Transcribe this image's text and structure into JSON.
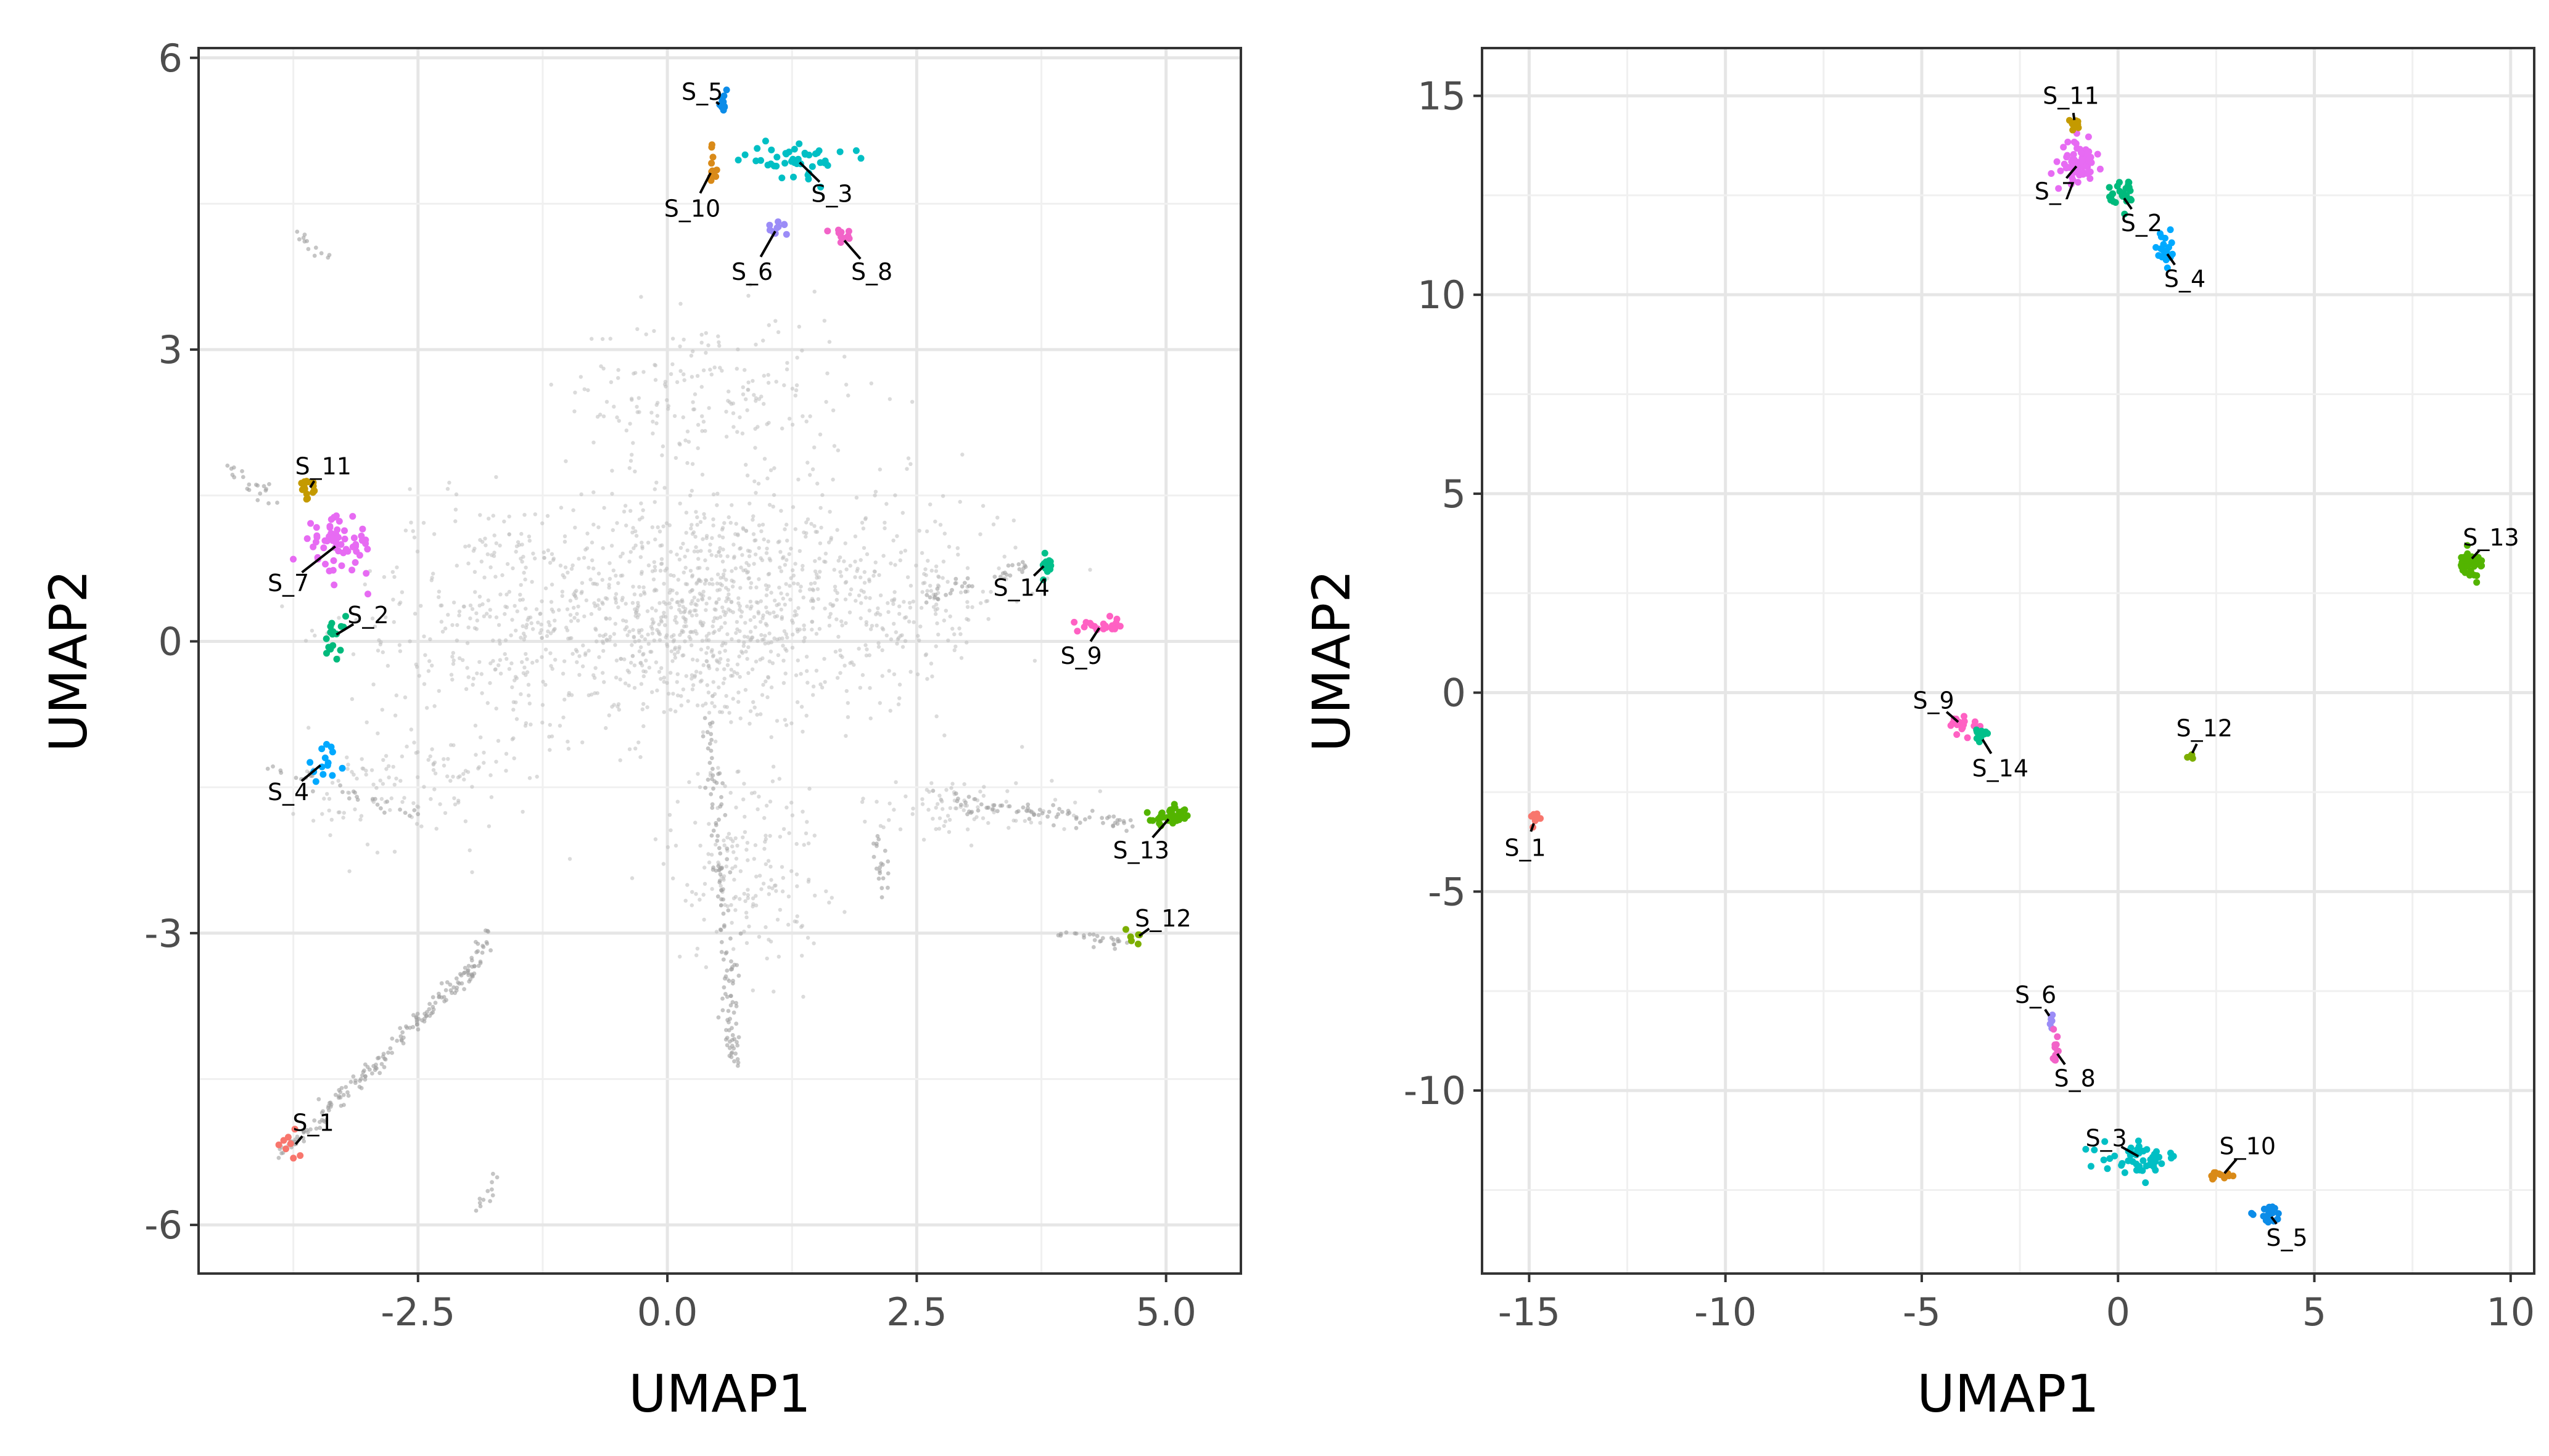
{
  "chart_data": [
    {
      "type": "scatter",
      "xlabel": "UMAP1",
      "ylabel": "UMAP2",
      "xlim": [
        -4.7,
        5.75
      ],
      "ylim": [
        -6.5,
        6.1
      ],
      "xticks": [
        -2.5,
        0.0,
        2.5,
        5.0
      ],
      "xtick_labels": [
        "-2.5",
        "0.0",
        "2.5",
        "5.0"
      ],
      "yticks": [
        -6,
        -3,
        0,
        3,
        6
      ],
      "ytick_labels": [
        "-6",
        "-3",
        "0",
        "3",
        "6"
      ],
      "grid": true,
      "background_color": "#bdbdbd",
      "background_clusters": [
        {
          "cx": 0.3,
          "cy": 0.3,
          "sx": 1.5,
          "sy": 1.1,
          "n": 950
        },
        {
          "cx": -1.8,
          "cy": 0.2,
          "sx": 1.2,
          "sy": 1.2,
          "n": 280
        },
        {
          "cx": 2.3,
          "cy": 0.5,
          "sx": 1.1,
          "sy": 1.0,
          "n": 250
        },
        {
          "cx": 0.4,
          "cy": 2.5,
          "sx": 1.3,
          "sy": 0.8,
          "n": 200
        },
        {
          "cx": 0.8,
          "cy": -2.3,
          "sx": 0.7,
          "sy": 1.0,
          "n": 180
        },
        {
          "cx": -2.6,
          "cy": -1.5,
          "sx": 0.9,
          "sy": 0.6,
          "n": 120
        },
        {
          "cx": 3.0,
          "cy": -1.7,
          "sx": 1.0,
          "sy": 0.25,
          "n": 90
        }
      ],
      "background_lines": [
        {
          "x1": -3.9,
          "y1": -5.3,
          "x2": -2.0,
          "y2": -3.4,
          "n": 160
        },
        {
          "x1": -2.0,
          "y1": -3.5,
          "x2": -1.8,
          "y2": -3.0,
          "n": 30
        },
        {
          "x1": 0.4,
          "y1": -0.8,
          "x2": 0.7,
          "y2": -4.4,
          "n": 110
        },
        {
          "x1": 2.6,
          "y1": -1.6,
          "x2": 4.7,
          "y2": -1.9,
          "n": 70
        },
        {
          "x1": 3.8,
          "y1": -3.0,
          "x2": 4.6,
          "y2": -3.1,
          "n": 25
        },
        {
          "x1": 2.5,
          "y1": 0.4,
          "x2": 3.6,
          "y2": 0.8,
          "n": 35
        },
        {
          "x1": -4.4,
          "y1": 1.8,
          "x2": -3.9,
          "y2": 1.4,
          "n": 20
        },
        {
          "x1": -3.7,
          "y1": 4.2,
          "x2": -3.4,
          "y2": 3.9,
          "n": 12
        },
        {
          "x1": -1.9,
          "y1": -5.9,
          "x2": -1.7,
          "y2": -5.5,
          "n": 12
        },
        {
          "x1": -4.0,
          "y1": -1.3,
          "x2": -2.5,
          "y2": -1.8,
          "n": 30
        },
        {
          "x1": 2.1,
          "y1": -2.0,
          "x2": 2.2,
          "y2": -2.7,
          "n": 20
        },
        {
          "x1": 0.55,
          "y1": -3.8,
          "x2": 0.7,
          "y2": -4.4,
          "n": 20
        }
      ],
      "samples": [
        {
          "name": "S_1",
          "color": "#F8766D",
          "x": -3.75,
          "y": -5.2,
          "spread": [
            0.15,
            0.12
          ],
          "n": 8,
          "label_x": -3.55,
          "label_y": -4.95
        },
        {
          "name": "S_2",
          "color": "#00BA7C",
          "x": -3.35,
          "y": 0.05,
          "spread": [
            0.1,
            0.18
          ],
          "n": 16,
          "label_x": -3.0,
          "label_y": 0.27
        },
        {
          "name": "S_3",
          "color": "#00BFC4",
          "x": 1.3,
          "y": 4.95,
          "spread": [
            0.45,
            0.15
          ],
          "n": 45,
          "label_x": 1.65,
          "label_y": 4.6
        },
        {
          "name": "S_4",
          "color": "#00A9FF",
          "x": -3.45,
          "y": -1.25,
          "spread": [
            0.15,
            0.12
          ],
          "n": 14,
          "label_x": -3.8,
          "label_y": -1.55
        },
        {
          "name": "S_5",
          "color": "#0C8CE8",
          "x": 0.55,
          "y": 5.5,
          "spread": [
            0.04,
            0.1
          ],
          "n": 12,
          "label_x": 0.35,
          "label_y": 5.65
        },
        {
          "name": "S_6",
          "color": "#9B8CF7",
          "x": 1.1,
          "y": 4.25,
          "spread": [
            0.1,
            0.07
          ],
          "n": 10,
          "label_x": 0.85,
          "label_y": 3.8
        },
        {
          "name": "S_7",
          "color": "#E76BF3",
          "x": -3.3,
          "y": 1.0,
          "spread": [
            0.3,
            0.25
          ],
          "n": 60,
          "label_x": -3.8,
          "label_y": 0.6
        },
        {
          "name": "S_8",
          "color": "#F263C8",
          "x": 1.75,
          "y": 4.15,
          "spread": [
            0.08,
            0.07
          ],
          "n": 12,
          "label_x": 2.05,
          "label_y": 3.8
        },
        {
          "name": "S_9",
          "color": "#FF61C3",
          "x": 4.35,
          "y": 0.17,
          "spread": [
            0.2,
            0.06
          ],
          "n": 20,
          "label_x": 4.15,
          "label_y": -0.15
        },
        {
          "name": "S_10",
          "color": "#D98A18",
          "x": 0.45,
          "y": 4.85,
          "spread": [
            0.05,
            0.2
          ],
          "n": 12,
          "label_x": 0.25,
          "label_y": 4.45
        },
        {
          "name": "S_11",
          "color": "#C49A00",
          "x": -3.6,
          "y": 1.55,
          "spread": [
            0.08,
            0.08
          ],
          "n": 16,
          "label_x": -3.45,
          "label_y": 1.8
        },
        {
          "name": "S_12",
          "color": "#7CAE00",
          "x": 4.7,
          "y": -3.05,
          "spread": [
            0.1,
            0.08
          ],
          "n": 6,
          "label_x": 4.97,
          "label_y": -2.85
        },
        {
          "name": "S_13",
          "color": "#53B400",
          "x": 5.05,
          "y": -1.8,
          "spread": [
            0.15,
            0.07
          ],
          "n": 40,
          "label_x": 4.75,
          "label_y": -2.15
        },
        {
          "name": "S_14",
          "color": "#00C08B",
          "x": 3.8,
          "y": 0.8,
          "spread": [
            0.05,
            0.13
          ],
          "n": 12,
          "label_x": 3.55,
          "label_y": 0.55
        }
      ]
    },
    {
      "type": "scatter",
      "xlabel": "UMAP1",
      "ylabel": "UMAP2",
      "xlim": [
        -16.2,
        10.6
      ],
      "ylim": [
        -14.6,
        16.2
      ],
      "xticks": [
        -15,
        -10,
        -5,
        0,
        5,
        10
      ],
      "xtick_labels": [
        "-15",
        "-10",
        "-5",
        "0",
        "5",
        "10"
      ],
      "yticks": [
        -10,
        -5,
        0,
        5,
        10,
        15
      ],
      "ytick_labels": [
        "-10",
        "-5",
        "0",
        "5",
        "10",
        "15"
      ],
      "grid": true,
      "samples": [
        {
          "name": "S_1",
          "color": "#F8766D",
          "x": -14.85,
          "y": -3.2,
          "spread": [
            0.15,
            0.3
          ],
          "n": 8,
          "label_x": -15.1,
          "label_y": -3.9
        },
        {
          "name": "S_2",
          "color": "#00BA7C",
          "x": 0.1,
          "y": 12.5,
          "spread": [
            0.3,
            0.3
          ],
          "n": 25,
          "label_x": 0.6,
          "label_y": 11.8
        },
        {
          "name": "S_3",
          "color": "#00BFC4",
          "x": 0.6,
          "y": -11.7,
          "spread": [
            0.8,
            0.3
          ],
          "n": 50,
          "label_x": -0.3,
          "label_y": -11.2
        },
        {
          "name": "S_4",
          "color": "#00A9FF",
          "x": 1.2,
          "y": 11.1,
          "spread": [
            0.25,
            0.35
          ],
          "n": 20,
          "label_x": 1.7,
          "label_y": 10.4
        },
        {
          "name": "S_5",
          "color": "#0C8CE8",
          "x": 3.85,
          "y": -13.1,
          "spread": [
            0.3,
            0.2
          ],
          "n": 20,
          "label_x": 4.3,
          "label_y": -13.7
        },
        {
          "name": "S_6",
          "color": "#9B8CF7",
          "x": -1.7,
          "y": -8.2,
          "spread": [
            0.05,
            0.15
          ],
          "n": 6,
          "label_x": -2.1,
          "label_y": -7.6
        },
        {
          "name": "S_7",
          "color": "#E76BF3",
          "x": -1.0,
          "y": 13.3,
          "spread": [
            0.35,
            0.45
          ],
          "n": 70,
          "label_x": -1.6,
          "label_y": 12.6
        },
        {
          "name": "S_8",
          "color": "#F263C8",
          "x": -1.6,
          "y": -9.0,
          "spread": [
            0.08,
            0.3
          ],
          "n": 12,
          "label_x": -1.1,
          "label_y": -9.7
        },
        {
          "name": "S_9",
          "color": "#FF61C3",
          "x": -4.0,
          "y": -0.8,
          "spread": [
            0.35,
            0.2
          ],
          "n": 22,
          "label_x": -4.7,
          "label_y": -0.2
        },
        {
          "name": "S_10",
          "color": "#D98A18",
          "x": 2.65,
          "y": -12.15,
          "spread": [
            0.25,
            0.08
          ],
          "n": 14,
          "label_x": 3.3,
          "label_y": -11.4
        },
        {
          "name": "S_11",
          "color": "#C49A00",
          "x": -1.1,
          "y": 14.3,
          "spread": [
            0.1,
            0.12
          ],
          "n": 14,
          "label_x": -1.2,
          "label_y": 15.0
        },
        {
          "name": "S_12",
          "color": "#7CAE00",
          "x": 1.85,
          "y": -1.6,
          "spread": [
            0.05,
            0.05
          ],
          "n": 5,
          "label_x": 2.2,
          "label_y": -0.9
        },
        {
          "name": "S_13",
          "color": "#53B400",
          "x": 8.95,
          "y": 3.3,
          "spread": [
            0.3,
            0.25
          ],
          "n": 35,
          "label_x": 9.5,
          "label_y": 3.9
        },
        {
          "name": "S_14",
          "color": "#00C08B",
          "x": -3.5,
          "y": -1.1,
          "spread": [
            0.2,
            0.2
          ],
          "n": 12,
          "label_x": -3.0,
          "label_y": -1.9
        }
      ]
    }
  ]
}
